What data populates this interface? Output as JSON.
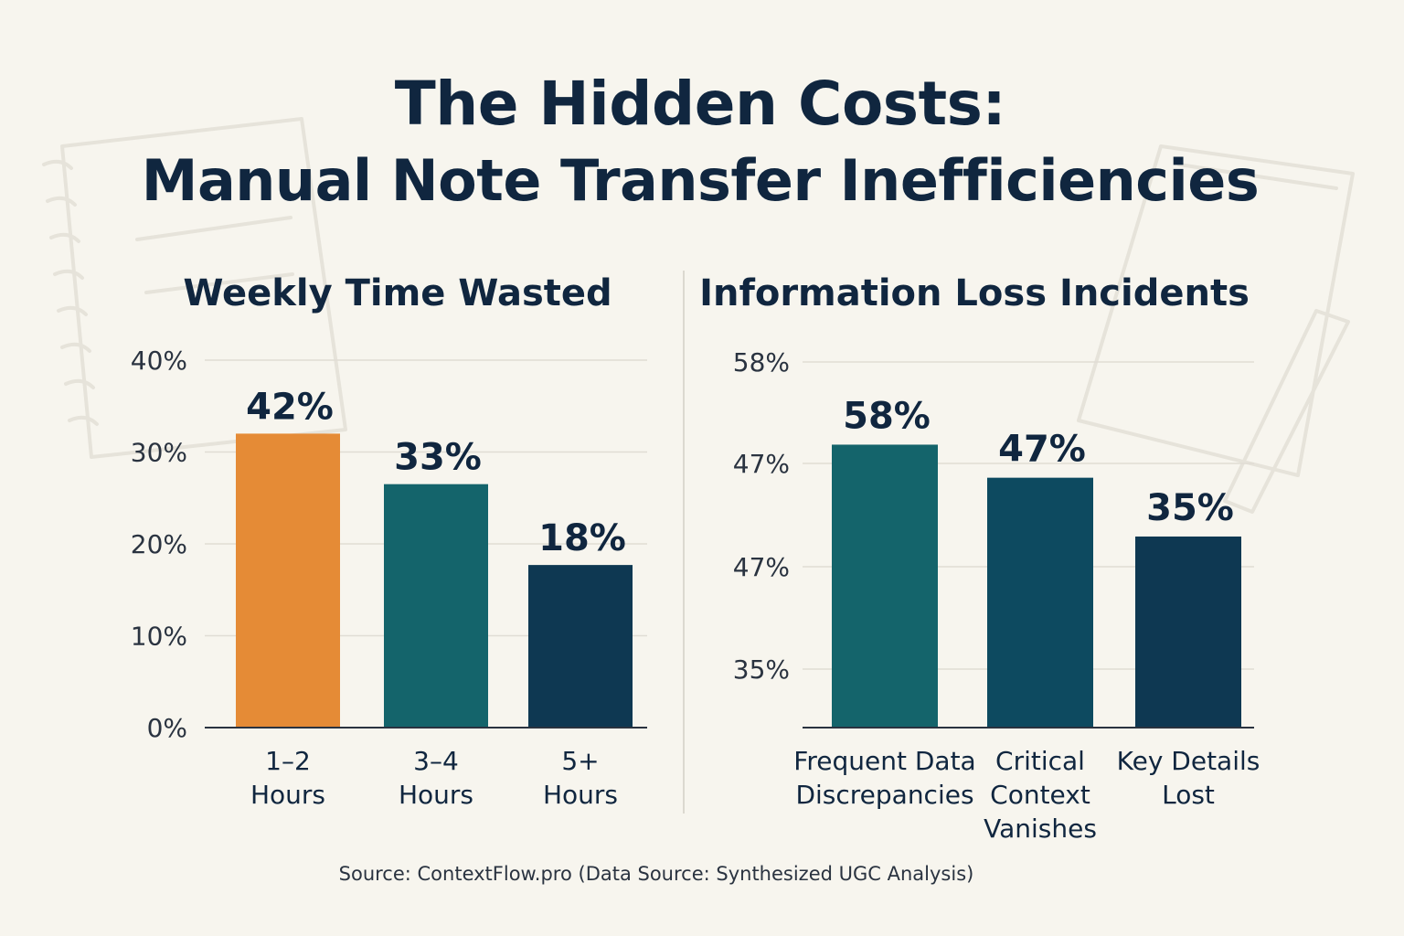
{
  "title_line1": "The Hidden Costs:",
  "title_line2": "Manual Note Transfer Inefficiencies",
  "source": "Source: ContextFlow.pro (Data Source: Synthesized UGC Analysis)",
  "chart_data": [
    {
      "type": "bar",
      "title": "Weekly Time Wasted",
      "categories": [
        [
          "1–2",
          "Hours"
        ],
        [
          "3–4",
          "Hours"
        ],
        [
          "5+",
          "Hours"
        ]
      ],
      "values": [
        42,
        33,
        18
      ],
      "data_labels": [
        "42%",
        "33%",
        "18%"
      ],
      "bar_heights": [
        32,
        26.5,
        17.7
      ],
      "yticks": [
        "0%",
        "10%",
        "20%",
        "30%",
        "40%"
      ],
      "ylim": [
        0,
        40
      ],
      "colors": [
        "#e58b36",
        "#14646b",
        "#0e3852"
      ],
      "grid": true
    },
    {
      "type": "bar",
      "title": "Information Loss Incidents",
      "categories": [
        [
          "Frequent Data",
          "Discrepancies"
        ],
        [
          "Critical",
          "Context",
          "Vanishes"
        ],
        [
          "Key Details",
          "Lost"
        ]
      ],
      "values": [
        58,
        47,
        35
      ],
      "data_labels": [
        "58%",
        "47%",
        "35%"
      ],
      "bar_heights": [
        0.77,
        0.68,
        0.52
      ],
      "yticks": [
        "58%",
        "47%",
        "47%",
        "35%"
      ],
      "colors": [
        "#14646b",
        "#0d4a60",
        "#0e3852"
      ],
      "grid": true
    }
  ]
}
